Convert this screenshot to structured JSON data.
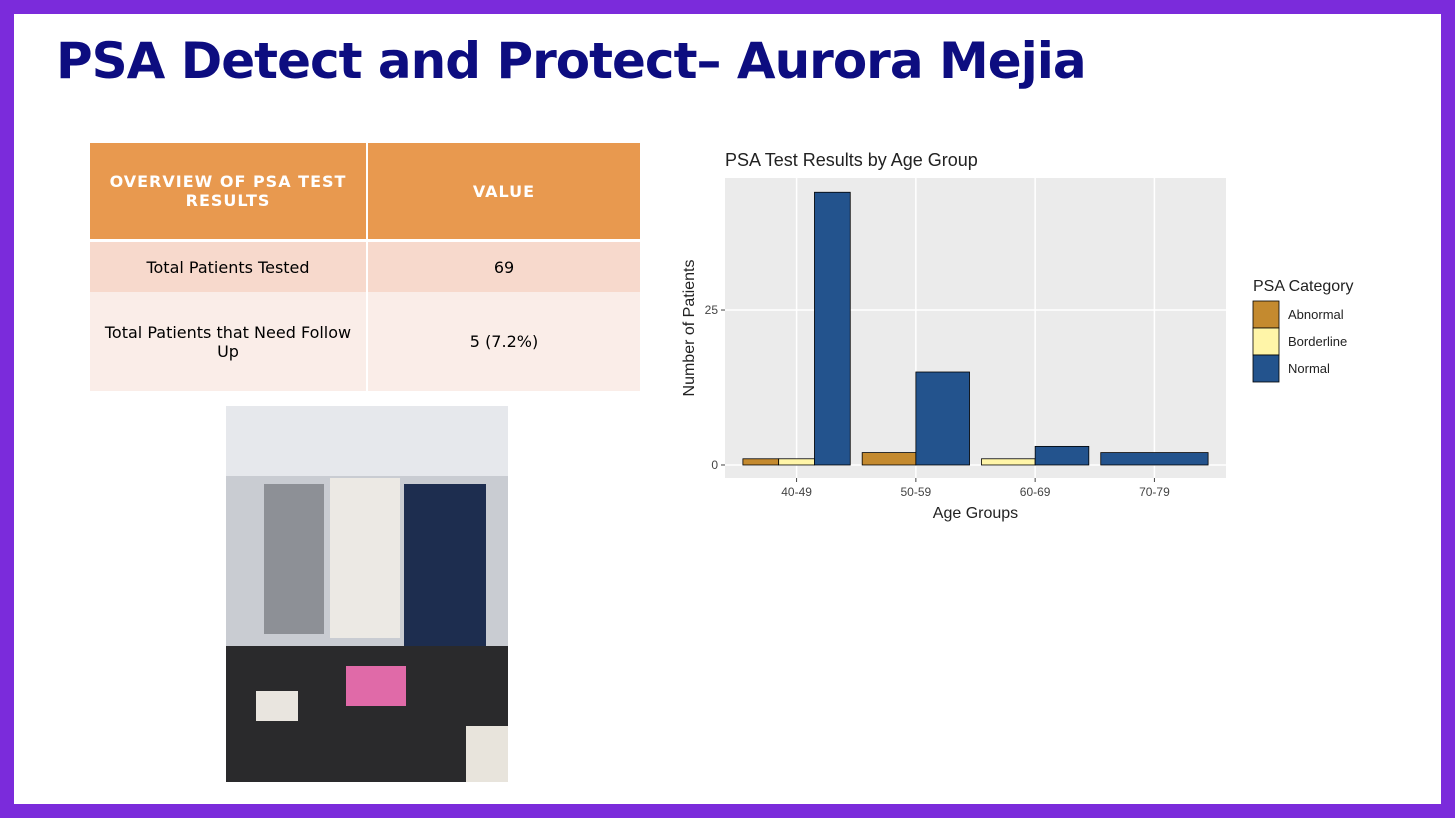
{
  "title": "PSA Detect and Protect– Aurora Mejia",
  "table": {
    "header": [
      "OVERVIEW OF PSA TEST RESULTS",
      "VALUE"
    ],
    "rows": [
      [
        "Total Patients Tested",
        "69"
      ],
      [
        "Total Patients that Need Follow Up",
        "5 (7.2%)"
      ]
    ]
  },
  "chart_data": {
    "type": "bar",
    "title": "PSA Test Results by Age Group",
    "x_label": "Age Groups",
    "y_label": "Number of Patients",
    "categories": [
      "40-49",
      "50-59",
      "60-69",
      "70-79"
    ],
    "legend_title": "PSA Category",
    "series": [
      {
        "name": "Abnormal",
        "color": "#c48a2f",
        "values": [
          1,
          2,
          null,
          null
        ]
      },
      {
        "name": "Borderline",
        "color": "#fff5a8",
        "values": [
          1,
          null,
          1,
          null
        ]
      },
      {
        "name": "Normal",
        "color": "#23538d",
        "values": [
          44,
          15,
          3,
          2
        ]
      }
    ],
    "ylim": [
      -2.1,
      46.3
    ],
    "yticks": [
      0,
      25
    ],
    "grid": true,
    "legend": "right"
  }
}
